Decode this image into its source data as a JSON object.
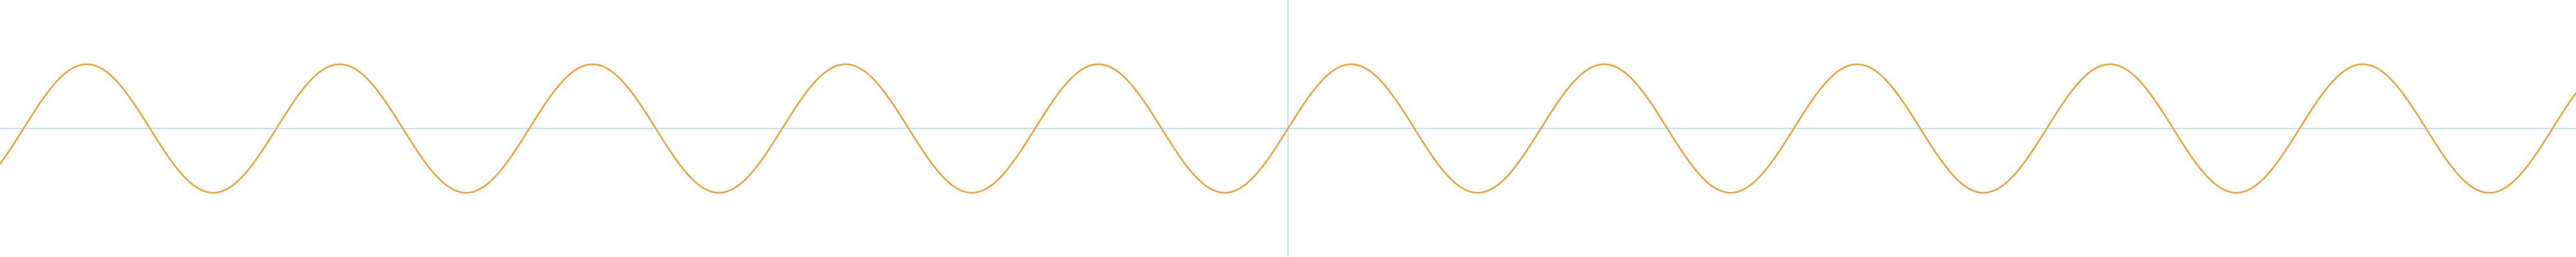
{
  "chart_data": {
    "type": "line",
    "title": "",
    "xlabel": "",
    "ylabel": "",
    "grid": false,
    "legend": false,
    "xlim": [
      -6.4,
      6.4
    ],
    "ylim": [
      -2,
      2
    ],
    "axes": {
      "x_axis_at_y": 0,
      "y_axis_at_x": 0
    },
    "series": [
      {
        "function": "sin(5x)",
        "x_start": -6.4,
        "x_end": 6.4,
        "samples": 1601,
        "amplitude": 1,
        "angular_frequency": 5
      }
    ],
    "colors": {
      "curve": "#f0a030",
      "axes": "#bfe3ef",
      "background": "#ffffff"
    }
  }
}
